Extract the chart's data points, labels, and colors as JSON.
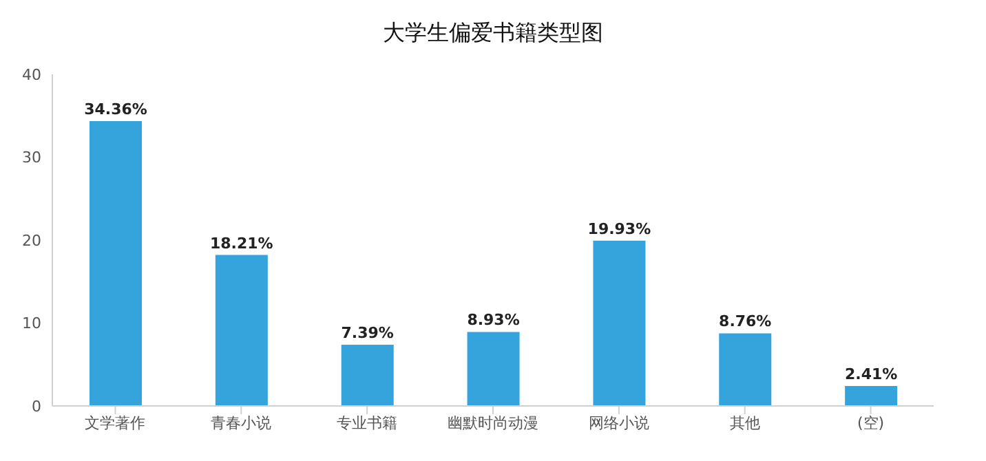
{
  "chart_data": {
    "type": "bar",
    "title": "大学生偏爱书籍类型图",
    "categories": [
      "文学著作",
      "青春小说",
      "专业书籍",
      "幽默时尚动漫",
      "网络小说",
      "其他",
      "(空)"
    ],
    "values": [
      34.36,
      18.21,
      7.39,
      8.93,
      19.93,
      8.76,
      2.41
    ],
    "value_labels": [
      "34.36%",
      "18.21%",
      "7.39%",
      "8.93%",
      "19.93%",
      "8.76%",
      "2.41%"
    ],
    "color": "#35a3dc",
    "ylim": [
      0,
      40
    ],
    "yticks": [
      0,
      10,
      20,
      30,
      40
    ],
    "grid": false,
    "legend": false
  }
}
